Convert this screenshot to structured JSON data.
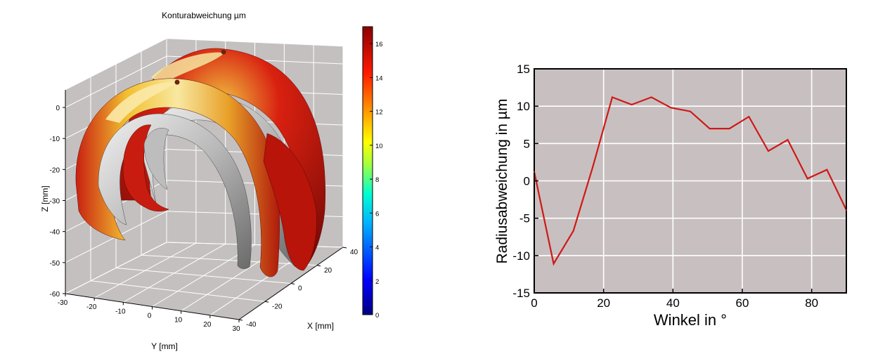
{
  "chart_data": [
    {
      "type": "surface3d",
      "title": "Konturabweichung µm",
      "xlabel": "X [mm]",
      "ylabel": "Y [mm]",
      "zlabel": "Z [mm]",
      "x_ticks": [
        "-40",
        "-20",
        "0",
        "20",
        "40"
      ],
      "y_ticks": [
        "-30",
        "-20",
        "-10",
        "0",
        "10",
        "20",
        "30"
      ],
      "z_ticks": [
        "0",
        "-10",
        "-20",
        "-30",
        "-40",
        "-50",
        "-60"
      ],
      "xlim": [
        -40,
        40
      ],
      "ylim": [
        -30,
        30
      ],
      "zlim": [
        -60,
        0
      ],
      "colorbar": {
        "ticks": [
          "0",
          "2",
          "4",
          "6",
          "8",
          "10",
          "12",
          "14",
          "16"
        ],
        "range": [
          0,
          17
        ],
        "colormap": [
          "#00007f",
          "#0000ff",
          "#007fff",
          "#00ffff",
          "#7fff7f",
          "#ffff00",
          "#ff7f00",
          "#ff0000",
          "#7f0000"
        ]
      },
      "grid": true
    },
    {
      "type": "line",
      "xlabel": "Winkel in °",
      "ylabel": "Radiusabweichung in µm",
      "xlim": [
        0,
        90
      ],
      "ylim": [
        -15,
        15
      ],
      "x_ticks": [
        "0",
        "20",
        "40",
        "60",
        "80"
      ],
      "y_ticks": [
        "15",
        "10",
        "5",
        "0",
        "-5",
        "-10",
        "-15"
      ],
      "background": "#c8c0c0",
      "grid": true,
      "series": [
        {
          "color": "#d01818",
          "x": [
            0,
            5.6,
            11.3,
            16.9,
            22.5,
            28.1,
            33.8,
            39.4,
            45,
            50.6,
            56.3,
            61.9,
            67.5,
            73.1,
            78.8,
            84.4,
            90
          ],
          "y": [
            1.2,
            -11.1,
            -6.7,
            1.9,
            11.2,
            10.2,
            11.2,
            9.8,
            9.3,
            7.0,
            7.0,
            8.6,
            4.0,
            5.5,
            0.3,
            1.5,
            -3.9
          ]
        }
      ]
    }
  ]
}
